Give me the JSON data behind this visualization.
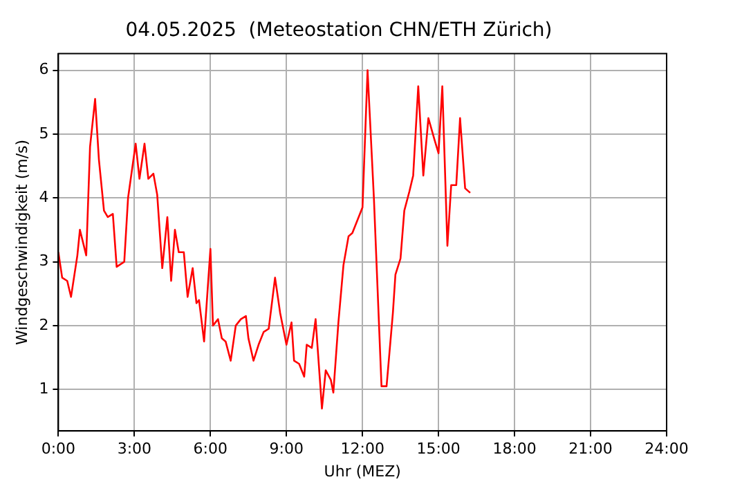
{
  "chart_data": {
    "type": "line",
    "title": "04.05.2025  (Meteostation CHN/ETH Zürich)",
    "xlabel": "Uhr (MEZ)",
    "ylabel": "Windgeschwindigkeit (m/s)",
    "x": [
      0.0,
      0.15,
      0.35,
      0.5,
      0.75,
      0.85,
      1.1,
      1.25,
      1.45,
      1.6,
      1.8,
      1.95,
      2.15,
      2.3,
      2.6,
      2.75,
      3.05,
      3.2,
      3.4,
      3.55,
      3.75,
      3.9,
      4.1,
      4.3,
      4.45,
      4.6,
      4.75,
      4.95,
      5.1,
      5.3,
      5.45,
      5.55,
      5.75,
      6.0,
      6.1,
      6.3,
      6.45,
      6.6,
      6.8,
      7.0,
      7.2,
      7.4,
      7.5,
      7.7,
      7.9,
      8.1,
      8.3,
      8.55,
      8.75,
      9.0,
      9.2,
      9.3,
      9.5,
      9.7,
      9.8,
      10.0,
      10.15,
      10.4,
      10.55,
      10.75,
      10.85,
      11.05,
      11.25,
      11.45,
      11.6,
      11.8,
      12.0,
      12.2,
      12.45,
      12.75,
      12.95,
      13.2,
      13.3,
      13.5,
      13.65,
      13.85,
      14.0,
      14.2,
      14.4,
      14.6,
      14.85,
      15.0,
      15.15,
      15.35,
      15.5,
      15.7,
      15.85,
      16.05,
      16.25
    ],
    "series": [
      {
        "color": "#ff0000",
        "values": [
          3.15,
          2.75,
          2.7,
          2.45,
          3.1,
          3.5,
          3.1,
          4.8,
          5.55,
          4.6,
          3.8,
          3.7,
          3.75,
          2.92,
          3.0,
          4.0,
          4.85,
          4.3,
          4.85,
          4.3,
          4.38,
          4.05,
          2.9,
          3.7,
          2.7,
          3.5,
          3.15,
          3.15,
          2.45,
          2.9,
          2.35,
          2.4,
          1.75,
          3.2,
          2.0,
          2.1,
          1.8,
          1.75,
          1.45,
          2.0,
          2.1,
          2.15,
          1.8,
          1.45,
          1.7,
          1.9,
          1.95,
          2.75,
          2.2,
          1.7,
          2.05,
          1.45,
          1.4,
          1.2,
          1.7,
          1.65,
          2.1,
          0.7,
          1.3,
          1.15,
          0.95,
          2.05,
          2.95,
          3.4,
          3.45,
          3.65,
          3.85,
          6.0,
          4.0,
          1.05,
          1.05,
          2.2,
          2.8,
          3.05,
          3.8,
          4.1,
          4.35,
          5.75,
          4.35,
          5.25,
          4.9,
          4.7,
          5.75,
          3.25,
          4.2,
          4.2,
          5.25,
          4.15,
          4.08
        ]
      }
    ],
    "xlim": [
      0,
      24
    ],
    "xticks": [
      {
        "value": 0,
        "label": "0:00"
      },
      {
        "value": 3,
        "label": "3:00"
      },
      {
        "value": 6,
        "label": "6:00"
      },
      {
        "value": 9,
        "label": "9:00"
      },
      {
        "value": 12,
        "label": "12:00"
      },
      {
        "value": 15,
        "label": "15:00"
      },
      {
        "value": 18,
        "label": "18:00"
      },
      {
        "value": 21,
        "label": "21:00"
      },
      {
        "value": 24,
        "label": "24:00"
      }
    ],
    "ylim": [
      0.35,
      6.26
    ],
    "yticks": [
      1,
      2,
      3,
      4,
      5,
      6
    ],
    "grid": true,
    "marker": "none",
    "line_style": "solid"
  }
}
